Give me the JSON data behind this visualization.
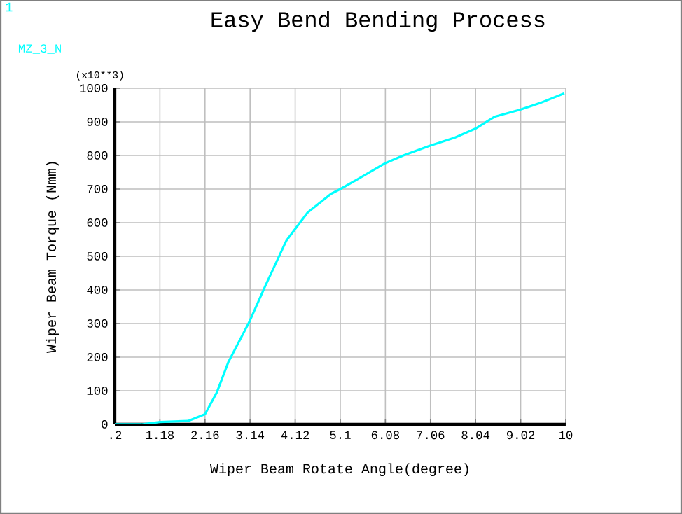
{
  "chart_data": {
    "type": "line",
    "title": "Easy Bend Bending Process",
    "xlabel": "Wiper Beam Rotate Angle(degree)",
    "ylabel": "Wiper Beam Torque (Nmm)",
    "annotations": [
      "1",
      "(x10**3)"
    ],
    "x": [
      0.2,
      0.78,
      1.18,
      1.79,
      2.16,
      2.42,
      2.67,
      3.12,
      3.48,
      3.93,
      4.39,
      4.9,
      5.1,
      5.46,
      6.06,
      6.47,
      7.03,
      7.59,
      8.04,
      8.45,
      9.0,
      9.46,
      9.97
    ],
    "series": [
      {
        "name": "MZ_3_N",
        "color": "#00ffff",
        "values": [
          0,
          0,
          7,
          10,
          30,
          96,
          186,
          304,
          415,
          547,
          630,
          686,
          700,
          728,
          776,
          800,
          828,
          853,
          880,
          915,
          936,
          957,
          985
        ]
      }
    ],
    "xlim": [
      0.2,
      10
    ],
    "ylim": [
      0,
      1000
    ],
    "xticks": [
      {
        "value": 0.2,
        "label": ".2"
      },
      1.18,
      2.16,
      3.14,
      4.12,
      5.1,
      6.08,
      7.06,
      8.04,
      9.02,
      10
    ],
    "yticks": [
      0,
      100,
      200,
      300,
      400,
      500,
      600,
      700,
      800,
      900,
      1000
    ],
    "grid": true,
    "legend": "top left",
    "marker": "none",
    "line_style": "solid"
  }
}
